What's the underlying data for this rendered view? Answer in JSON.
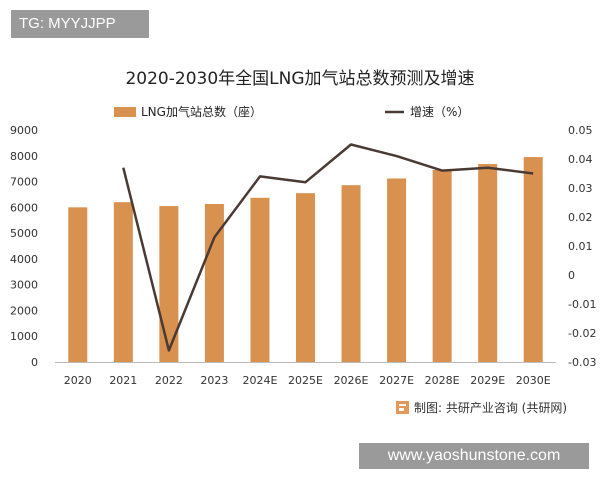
{
  "header_tag": "TG: MYYJJPP",
  "footer_watermark": "www.yaoshunstone.com",
  "source": "制图: 共研产业咨询 (共研网)",
  "chart_data": {
    "type": "bar+line",
    "title": "2020-2030年全国LNG加气站总数预测及增速",
    "categories": [
      "2020",
      "2021",
      "2022",
      "2023",
      "2024E",
      "2025E",
      "2026E",
      "2027E",
      "2028E",
      "2029E",
      "2030E"
    ],
    "series": [
      {
        "name": "LNG加气站总数（座）",
        "type": "bar",
        "axis": "left",
        "color": "#d9914f",
        "values": [
          6000,
          6200,
          6050,
          6130,
          6370,
          6550,
          6860,
          7120,
          7450,
          7680,
          7950
        ]
      },
      {
        "name": "增速（%）",
        "type": "line",
        "axis": "right",
        "color": "#4a3a34",
        "values": [
          null,
          0.037,
          -0.026,
          0.013,
          0.034,
          0.032,
          0.045,
          0.041,
          0.036,
          0.037,
          0.035
        ]
      }
    ],
    "y_left": {
      "min": 0,
      "max": 9000,
      "ticks": [
        "0",
        "1000",
        "2000",
        "3000",
        "4000",
        "5000",
        "6000",
        "7000",
        "8000",
        "9000"
      ]
    },
    "y_right": {
      "min": -0.03,
      "max": 0.05,
      "ticks": [
        "-0.03",
        "-0.02",
        "-0.01",
        "0",
        "0.01",
        "0.02",
        "0.03",
        "0.04",
        "0.05"
      ]
    },
    "grid": false,
    "legend_position": "top"
  }
}
